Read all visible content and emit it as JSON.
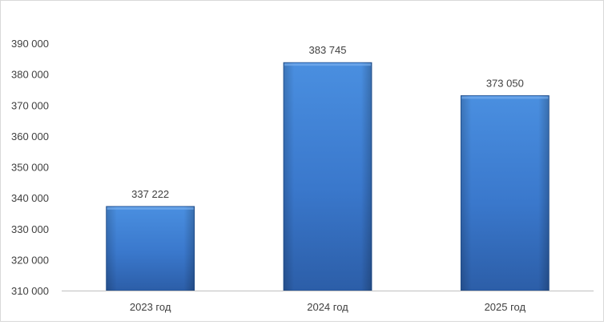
{
  "chart_data": {
    "type": "bar",
    "title": "",
    "xlabel": "",
    "ylabel": "",
    "categories": [
      "2023 год",
      "2024 год",
      "2025 год"
    ],
    "values": [
      337222,
      383745,
      373050
    ],
    "value_labels": [
      "337 222",
      "383 745",
      "373 050"
    ],
    "ylim": [
      310000,
      390000
    ],
    "yticks": [
      310000,
      320000,
      330000,
      340000,
      350000,
      360000,
      370000,
      380000,
      390000
    ],
    "ytick_labels": [
      "310 000",
      "320 000",
      "330 000",
      "340 000",
      "350 000",
      "360 000",
      "370 000",
      "380 000",
      "390 000"
    ],
    "grid": false,
    "legend": "none",
    "colors": {
      "bar_light": "#4a8fe0",
      "bar_mid": "#3a78cc",
      "bar_dark": "#2c5ea8",
      "bar_edge": "#1f4f91",
      "axis": "#bfbfbf",
      "text": "#404040"
    }
  }
}
